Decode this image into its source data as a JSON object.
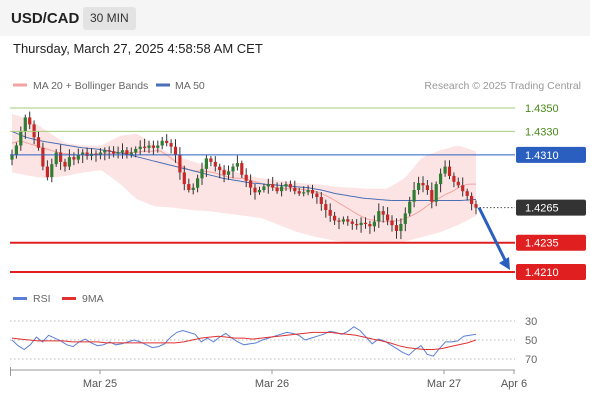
{
  "header": {
    "symbol": "USD/CAD",
    "timeframe": "30 MIN",
    "timestamp": "Thursday, March 27, 2025 4:58:58 AM CET"
  },
  "legend": {
    "bb_label": "MA 20 + Bollinger Bands",
    "ma50_label": "MA 50",
    "copyright": "Research © 2025 Trading Central",
    "rsi_label": "RSI",
    "rsi_ma_label": "9MA"
  },
  "colors": {
    "candle_up": "#2e7d32",
    "candle_down": "#c62828",
    "bollinger_fill": "#fde1e1",
    "ma20": "#f4a3a3",
    "ma50": "#4a6fb5",
    "support": "#e02020",
    "resistance_green": "#a6cc7a",
    "pivot": "#2b5fbf",
    "current_price": "#333333",
    "arrow": "#2b5fbf",
    "rsi": "#5b7fd6",
    "rsi_ma": "#e03030"
  },
  "chart_data": [
    {
      "type": "candlestick",
      "title": "",
      "x_tick_labels": [
        "Mar 25",
        "Mar 26",
        "Mar 27",
        "Apr 6"
      ],
      "y_axis_range": [
        1.4195,
        1.4365
      ],
      "price_levels": [
        {
          "label": "1.4350",
          "value": 1.435,
          "kind": "resistance"
        },
        {
          "label": "1.4330",
          "value": 1.433,
          "kind": "resistance"
        },
        {
          "label": "1.4310",
          "value": 1.431,
          "kind": "pivot"
        },
        {
          "label": "1.4265",
          "value": 1.4265,
          "kind": "current"
        },
        {
          "label": "1.4235",
          "value": 1.4235,
          "kind": "support"
        },
        {
          "label": "1.4210",
          "value": 1.421,
          "kind": "support"
        }
      ],
      "forecast_arrow": {
        "from": 1.4265,
        "to": 1.421
      },
      "close_path": [
        1.431,
        1.4318,
        1.433,
        1.4342,
        1.4336,
        1.4325,
        1.4316,
        1.43,
        1.4291,
        1.4302,
        1.4312,
        1.4304,
        1.43,
        1.4308,
        1.4306,
        1.431,
        1.4312,
        1.4309,
        1.4311,
        1.431,
        1.4312,
        1.4314,
        1.4313,
        1.4311,
        1.4312,
        1.4314,
        1.431,
        1.4312,
        1.4315,
        1.4317,
        1.4316,
        1.4318,
        1.4316,
        1.4318,
        1.4322,
        1.432,
        1.4317,
        1.431,
        1.4295,
        1.4285,
        1.428,
        1.4282,
        1.429,
        1.4298,
        1.4307,
        1.4304,
        1.43,
        1.4297,
        1.4293,
        1.4296,
        1.43,
        1.4303,
        1.4293,
        1.4288,
        1.4282,
        1.4278,
        1.428,
        1.4283,
        1.4285,
        1.4282,
        1.4279,
        1.4283,
        1.4285,
        1.4282,
        1.4279,
        1.4277,
        1.4278,
        1.428,
        1.4277,
        1.4274,
        1.4268,
        1.4263,
        1.4258,
        1.4254,
        1.4253,
        1.4255,
        1.4253,
        1.4251,
        1.425,
        1.4252,
        1.4251,
        1.4249,
        1.4253,
        1.4262,
        1.4259,
        1.4254,
        1.425,
        1.4245,
        1.4251,
        1.426,
        1.427,
        1.428,
        1.4286,
        1.4284,
        1.428,
        1.427,
        1.4285,
        1.4294,
        1.43,
        1.4292,
        1.4287,
        1.4284,
        1.4279,
        1.4275,
        1.4268,
        1.4265
      ],
      "ma20_path": [
        1.432,
        1.4322,
        1.432,
        1.4318,
        1.4316,
        1.4314,
        1.4312,
        1.4311,
        1.431,
        1.431,
        1.431,
        1.4311,
        1.4311,
        1.4311,
        1.4312,
        1.4312,
        1.4312,
        1.4313,
        1.4313,
        1.4314,
        1.431,
        1.4305,
        1.43,
        1.4297,
        1.4296,
        1.4296,
        1.4295,
        1.4293,
        1.4291,
        1.429,
        1.429,
        1.4288,
        1.4286,
        1.4284,
        1.4282,
        1.4281,
        1.4281,
        1.4281,
        1.428,
        1.4279,
        1.4277,
        1.4274,
        1.427,
        1.4266,
        1.4262,
        1.4258,
        1.4255,
        1.4254,
        1.4253,
        1.4253,
        1.4254,
        1.4256,
        1.4259,
        1.4263,
        1.4268,
        1.4272,
        1.4276,
        1.4279,
        1.4283,
        1.4285,
        1.4285
      ],
      "ma50_path": [
        1.433,
        1.4325,
        1.4322,
        1.432,
        1.4318,
        1.4316,
        1.4315,
        1.4313,
        1.4311,
        1.4308,
        1.4305,
        1.4302,
        1.4299,
        1.4296,
        1.4293,
        1.429,
        1.4288,
        1.4286,
        1.4285,
        1.4284,
        1.4283,
        1.4282,
        1.428,
        1.4277,
        1.4275,
        1.4273,
        1.4272,
        1.4271,
        1.4271,
        1.4271,
        1.4271,
        1.4271,
        1.4271,
        1.4272
      ],
      "bollinger_upper_path": [
        1.4345,
        1.434,
        1.433,
        1.432,
        1.4318,
        1.4318,
        1.4326,
        1.4328,
        1.4318,
        1.431,
        1.4305,
        1.43,
        1.4298,
        1.4293,
        1.429,
        1.4288,
        1.4286,
        1.4285,
        1.4283,
        1.4282,
        1.4281,
        1.4281,
        1.429,
        1.4308,
        1.4314,
        1.4318,
        1.4313
      ],
      "bollinger_lower_path": [
        1.4295,
        1.4292,
        1.429,
        1.4292,
        1.4295,
        1.4297,
        1.4286,
        1.4272,
        1.4266,
        1.4265,
        1.4263,
        1.4262,
        1.426,
        1.4258,
        1.4256,
        1.425,
        1.4244,
        1.424,
        1.4237,
        1.4235,
        1.4234,
        1.4234,
        1.4236,
        1.424,
        1.4244,
        1.425,
        1.4258
      ]
    },
    {
      "type": "line",
      "title": "",
      "series": [
        {
          "name": "RSI",
          "values": [
            50,
            56,
            60,
            55,
            47,
            52,
            45,
            48,
            51,
            55,
            57,
            52,
            49,
            53,
            56,
            55,
            52,
            55,
            54,
            52,
            50,
            52,
            55,
            58,
            57,
            54,
            47,
            42,
            40,
            42,
            44,
            52,
            48,
            52,
            47,
            43,
            48,
            52,
            55,
            54,
            53,
            50,
            48,
            46,
            44,
            42,
            43,
            45,
            50,
            48,
            46,
            44,
            41,
            42,
            44,
            41,
            36,
            40,
            47,
            54,
            49,
            51,
            55,
            59,
            63,
            66,
            60,
            56,
            65,
            67,
            59,
            52,
            52,
            51,
            46,
            45,
            44
          ]
        },
        {
          "name": "9MA",
          "values": [
            48,
            49,
            50,
            51,
            51,
            51,
            51,
            52,
            52,
            52,
            52,
            53,
            53,
            53,
            53,
            53,
            53,
            53,
            53,
            53,
            52,
            50,
            48,
            47,
            46,
            47,
            48,
            48,
            49,
            48,
            47,
            46,
            45,
            44,
            43,
            42,
            42,
            42,
            43,
            44,
            45,
            47,
            49,
            51,
            53,
            56,
            58,
            59,
            60,
            60,
            59,
            57,
            55,
            53,
            50
          ]
        }
      ],
      "y_tick_labels": [
        "70",
        "50",
        "30"
      ],
      "y_axis_range": [
        20,
        80
      ]
    }
  ]
}
